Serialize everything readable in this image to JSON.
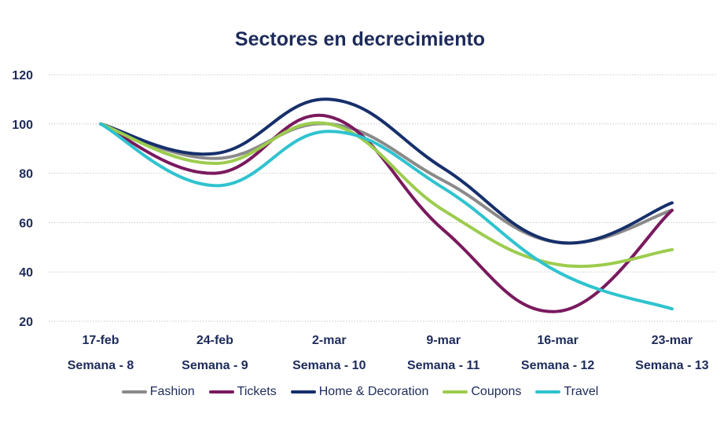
{
  "chart_data": {
    "type": "line",
    "title": "Sectores en decrecimiento",
    "categories": [
      "17-feb",
      "24-feb",
      "2-mar",
      "9-mar",
      "16-mar",
      "23-mar"
    ],
    "sublabels": [
      "Semana - 8",
      "Semana - 9",
      "Semana - 10",
      "Semana - 11",
      "Semana - 12",
      "Semana - 13"
    ],
    "ylim": [
      20,
      120
    ],
    "yticks": [
      20,
      40,
      60,
      80,
      100,
      120
    ],
    "grid": true,
    "legend_position": "bottom",
    "series": [
      {
        "name": "Fashion",
        "color": "#8a8a8a",
        "values": [
          100,
          86,
          100,
          77,
          52,
          65
        ]
      },
      {
        "name": "Tickets",
        "color": "#7a1a5e",
        "values": [
          100,
          80,
          103,
          57,
          24,
          65
        ]
      },
      {
        "name": "Home & Decoration",
        "color": "#16306b",
        "values": [
          100,
          88,
          110,
          82,
          52,
          68
        ]
      },
      {
        "name": "Coupons",
        "color": "#9ccc4e",
        "values": [
          100,
          84,
          100,
          65,
          43,
          49
        ]
      },
      {
        "name": "Travel",
        "color": "#2fc3cf",
        "values": [
          100,
          75,
          97,
          74,
          40,
          25
        ]
      }
    ]
  }
}
